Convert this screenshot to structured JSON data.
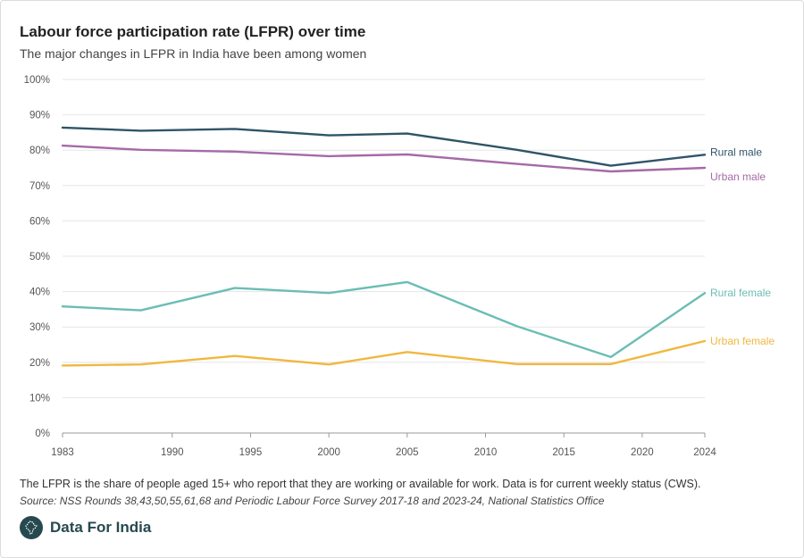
{
  "header": {
    "title": "Labour force participation rate (LFPR) over time",
    "subtitle": "The major changes in LFPR in India have been among women"
  },
  "footer": {
    "note": "The LFPR is the share of people aged 15+ who report that they are working or available for work. Data is for current weekly status (CWS).",
    "source": "Source: NSS Rounds 38,43,50,55,61,68 and Periodic Labour Force Survey 2017-18 and 2023-24, National Statistics Office",
    "brand": "Data For India",
    "brand_color": "#26494f"
  },
  "chart_data": {
    "type": "line",
    "x": [
      1983,
      1988,
      1994,
      2000,
      2005,
      2012,
      2018,
      2024
    ],
    "x_ticks": [
      "1983",
      "1990",
      "1995",
      "2000",
      "2005",
      "2010",
      "2015",
      "2020",
      "2024"
    ],
    "y_ticks": [
      "0%",
      "10%",
      "20%",
      "30%",
      "40%",
      "50%",
      "60%",
      "70%",
      "80%",
      "90%",
      "100%"
    ],
    "xlim": [
      1983,
      2024
    ],
    "ylim": [
      0,
      100
    ],
    "grid": true,
    "series": [
      {
        "name": "Rural male",
        "color": "#2f5468",
        "values": [
          86.4,
          85.5,
          86.0,
          84.2,
          84.7,
          80.1,
          75.6,
          78.7
        ]
      },
      {
        "name": "Urban male",
        "color": "#a56aa6",
        "values": [
          81.3,
          80.1,
          79.6,
          78.3,
          78.8,
          76.1,
          74.0,
          75.0
        ]
      },
      {
        "name": "Rural female",
        "color": "#6bbdb5",
        "values": [
          35.8,
          34.7,
          41.0,
          39.6,
          42.7,
          30.2,
          21.5,
          39.6
        ]
      },
      {
        "name": "Urban female",
        "color": "#f0b840",
        "values": [
          19.1,
          19.4,
          21.8,
          19.4,
          22.9,
          19.5,
          19.5,
          26.0
        ]
      }
    ]
  }
}
